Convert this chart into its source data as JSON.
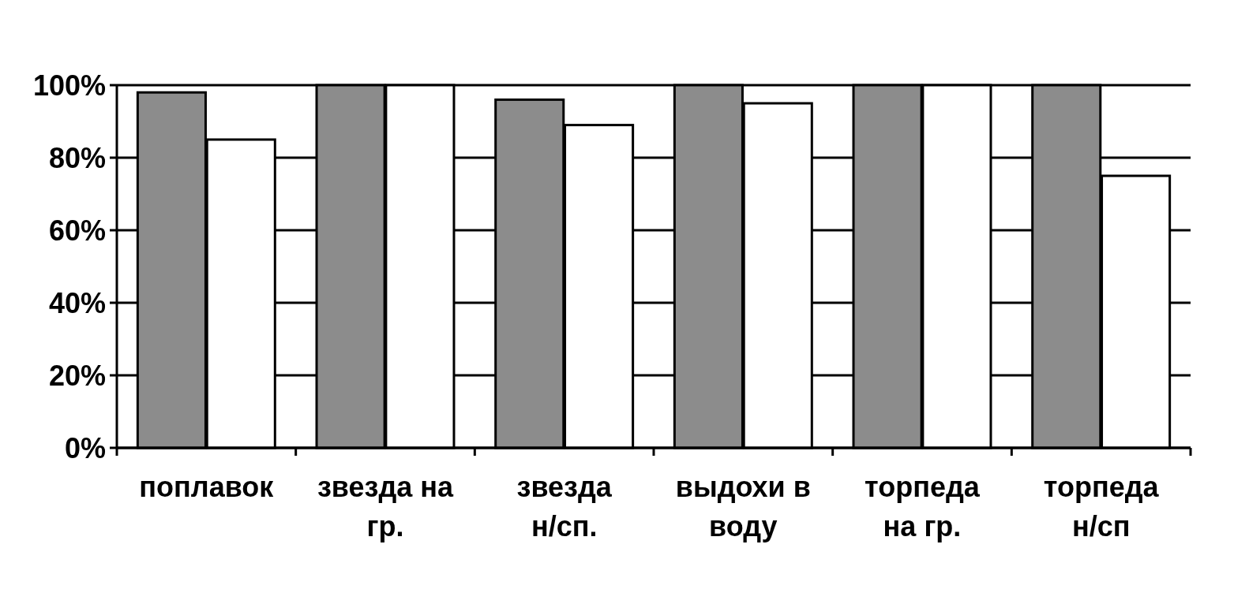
{
  "chart_data": {
    "type": "bar",
    "categories": [
      "поплавок",
      "звезда на гр.",
      "звезда н/сп.",
      "выдохи в воду",
      "торпеда на гр.",
      "торпеда н/сп"
    ],
    "series": [
      {
        "color": "#8c8c8c",
        "values": [
          98,
          100,
          96,
          100,
          100,
          100
        ]
      },
      {
        "color": "#ffffff",
        "values": [
          85,
          100,
          89,
          95,
          100,
          75
        ]
      }
    ],
    "ylim": [
      0,
      100
    ],
    "yticks": [
      {
        "value": 0,
        "label": "0%"
      },
      {
        "value": 20,
        "label": "20%"
      },
      {
        "value": 40,
        "label": "40%"
      },
      {
        "value": 60,
        "label": "60%"
      },
      {
        "value": 80,
        "label": "80%"
      },
      {
        "value": 100,
        "label": "100%"
      }
    ],
    "grid": "y"
  }
}
